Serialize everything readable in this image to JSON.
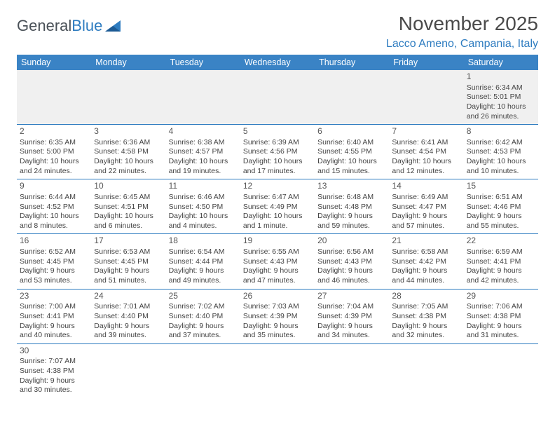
{
  "logo": {
    "text1": "General",
    "text2": "Blue"
  },
  "title": "November 2025",
  "location": "Lacco Ameno, Campania, Italy",
  "colors": {
    "header_bg": "#3a83c5",
    "header_text": "#ffffff",
    "accent": "#2e7cc0",
    "empty_bg": "#f0f0f0",
    "text": "#3a3a3a"
  },
  "typography": {
    "title_fontsize": 28,
    "location_fontsize": 16,
    "dayhead_fontsize": 12.5,
    "cell_fontsize": 10.5
  },
  "day_headers": [
    "Sunday",
    "Monday",
    "Tuesday",
    "Wednesday",
    "Thursday",
    "Friday",
    "Saturday"
  ],
  "weeks": [
    [
      null,
      null,
      null,
      null,
      null,
      null,
      {
        "n": "1",
        "sunrise": "Sunrise: 6:34 AM",
        "sunset": "Sunset: 5:01 PM",
        "day1": "Daylight: 10 hours",
        "day2": "and 26 minutes."
      }
    ],
    [
      {
        "n": "2",
        "sunrise": "Sunrise: 6:35 AM",
        "sunset": "Sunset: 5:00 PM",
        "day1": "Daylight: 10 hours",
        "day2": "and 24 minutes."
      },
      {
        "n": "3",
        "sunrise": "Sunrise: 6:36 AM",
        "sunset": "Sunset: 4:58 PM",
        "day1": "Daylight: 10 hours",
        "day2": "and 22 minutes."
      },
      {
        "n": "4",
        "sunrise": "Sunrise: 6:38 AM",
        "sunset": "Sunset: 4:57 PM",
        "day1": "Daylight: 10 hours",
        "day2": "and 19 minutes."
      },
      {
        "n": "5",
        "sunrise": "Sunrise: 6:39 AM",
        "sunset": "Sunset: 4:56 PM",
        "day1": "Daylight: 10 hours",
        "day2": "and 17 minutes."
      },
      {
        "n": "6",
        "sunrise": "Sunrise: 6:40 AM",
        "sunset": "Sunset: 4:55 PM",
        "day1": "Daylight: 10 hours",
        "day2": "and 15 minutes."
      },
      {
        "n": "7",
        "sunrise": "Sunrise: 6:41 AM",
        "sunset": "Sunset: 4:54 PM",
        "day1": "Daylight: 10 hours",
        "day2": "and 12 minutes."
      },
      {
        "n": "8",
        "sunrise": "Sunrise: 6:42 AM",
        "sunset": "Sunset: 4:53 PM",
        "day1": "Daylight: 10 hours",
        "day2": "and 10 minutes."
      }
    ],
    [
      {
        "n": "9",
        "sunrise": "Sunrise: 6:44 AM",
        "sunset": "Sunset: 4:52 PM",
        "day1": "Daylight: 10 hours",
        "day2": "and 8 minutes."
      },
      {
        "n": "10",
        "sunrise": "Sunrise: 6:45 AM",
        "sunset": "Sunset: 4:51 PM",
        "day1": "Daylight: 10 hours",
        "day2": "and 6 minutes."
      },
      {
        "n": "11",
        "sunrise": "Sunrise: 6:46 AM",
        "sunset": "Sunset: 4:50 PM",
        "day1": "Daylight: 10 hours",
        "day2": "and 4 minutes."
      },
      {
        "n": "12",
        "sunrise": "Sunrise: 6:47 AM",
        "sunset": "Sunset: 4:49 PM",
        "day1": "Daylight: 10 hours",
        "day2": "and 1 minute."
      },
      {
        "n": "13",
        "sunrise": "Sunrise: 6:48 AM",
        "sunset": "Sunset: 4:48 PM",
        "day1": "Daylight: 9 hours",
        "day2": "and 59 minutes."
      },
      {
        "n": "14",
        "sunrise": "Sunrise: 6:49 AM",
        "sunset": "Sunset: 4:47 PM",
        "day1": "Daylight: 9 hours",
        "day2": "and 57 minutes."
      },
      {
        "n": "15",
        "sunrise": "Sunrise: 6:51 AM",
        "sunset": "Sunset: 4:46 PM",
        "day1": "Daylight: 9 hours",
        "day2": "and 55 minutes."
      }
    ],
    [
      {
        "n": "16",
        "sunrise": "Sunrise: 6:52 AM",
        "sunset": "Sunset: 4:45 PM",
        "day1": "Daylight: 9 hours",
        "day2": "and 53 minutes."
      },
      {
        "n": "17",
        "sunrise": "Sunrise: 6:53 AM",
        "sunset": "Sunset: 4:45 PM",
        "day1": "Daylight: 9 hours",
        "day2": "and 51 minutes."
      },
      {
        "n": "18",
        "sunrise": "Sunrise: 6:54 AM",
        "sunset": "Sunset: 4:44 PM",
        "day1": "Daylight: 9 hours",
        "day2": "and 49 minutes."
      },
      {
        "n": "19",
        "sunrise": "Sunrise: 6:55 AM",
        "sunset": "Sunset: 4:43 PM",
        "day1": "Daylight: 9 hours",
        "day2": "and 47 minutes."
      },
      {
        "n": "20",
        "sunrise": "Sunrise: 6:56 AM",
        "sunset": "Sunset: 4:43 PM",
        "day1": "Daylight: 9 hours",
        "day2": "and 46 minutes."
      },
      {
        "n": "21",
        "sunrise": "Sunrise: 6:58 AM",
        "sunset": "Sunset: 4:42 PM",
        "day1": "Daylight: 9 hours",
        "day2": "and 44 minutes."
      },
      {
        "n": "22",
        "sunrise": "Sunrise: 6:59 AM",
        "sunset": "Sunset: 4:41 PM",
        "day1": "Daylight: 9 hours",
        "day2": "and 42 minutes."
      }
    ],
    [
      {
        "n": "23",
        "sunrise": "Sunrise: 7:00 AM",
        "sunset": "Sunset: 4:41 PM",
        "day1": "Daylight: 9 hours",
        "day2": "and 40 minutes."
      },
      {
        "n": "24",
        "sunrise": "Sunrise: 7:01 AM",
        "sunset": "Sunset: 4:40 PM",
        "day1": "Daylight: 9 hours",
        "day2": "and 39 minutes."
      },
      {
        "n": "25",
        "sunrise": "Sunrise: 7:02 AM",
        "sunset": "Sunset: 4:40 PM",
        "day1": "Daylight: 9 hours",
        "day2": "and 37 minutes."
      },
      {
        "n": "26",
        "sunrise": "Sunrise: 7:03 AM",
        "sunset": "Sunset: 4:39 PM",
        "day1": "Daylight: 9 hours",
        "day2": "and 35 minutes."
      },
      {
        "n": "27",
        "sunrise": "Sunrise: 7:04 AM",
        "sunset": "Sunset: 4:39 PM",
        "day1": "Daylight: 9 hours",
        "day2": "and 34 minutes."
      },
      {
        "n": "28",
        "sunrise": "Sunrise: 7:05 AM",
        "sunset": "Sunset: 4:38 PM",
        "day1": "Daylight: 9 hours",
        "day2": "and 32 minutes."
      },
      {
        "n": "29",
        "sunrise": "Sunrise: 7:06 AM",
        "sunset": "Sunset: 4:38 PM",
        "day1": "Daylight: 9 hours",
        "day2": "and 31 minutes."
      }
    ],
    [
      {
        "n": "30",
        "sunrise": "Sunrise: 7:07 AM",
        "sunset": "Sunset: 4:38 PM",
        "day1": "Daylight: 9 hours",
        "day2": "and 30 minutes."
      },
      null,
      null,
      null,
      null,
      null,
      null
    ]
  ]
}
